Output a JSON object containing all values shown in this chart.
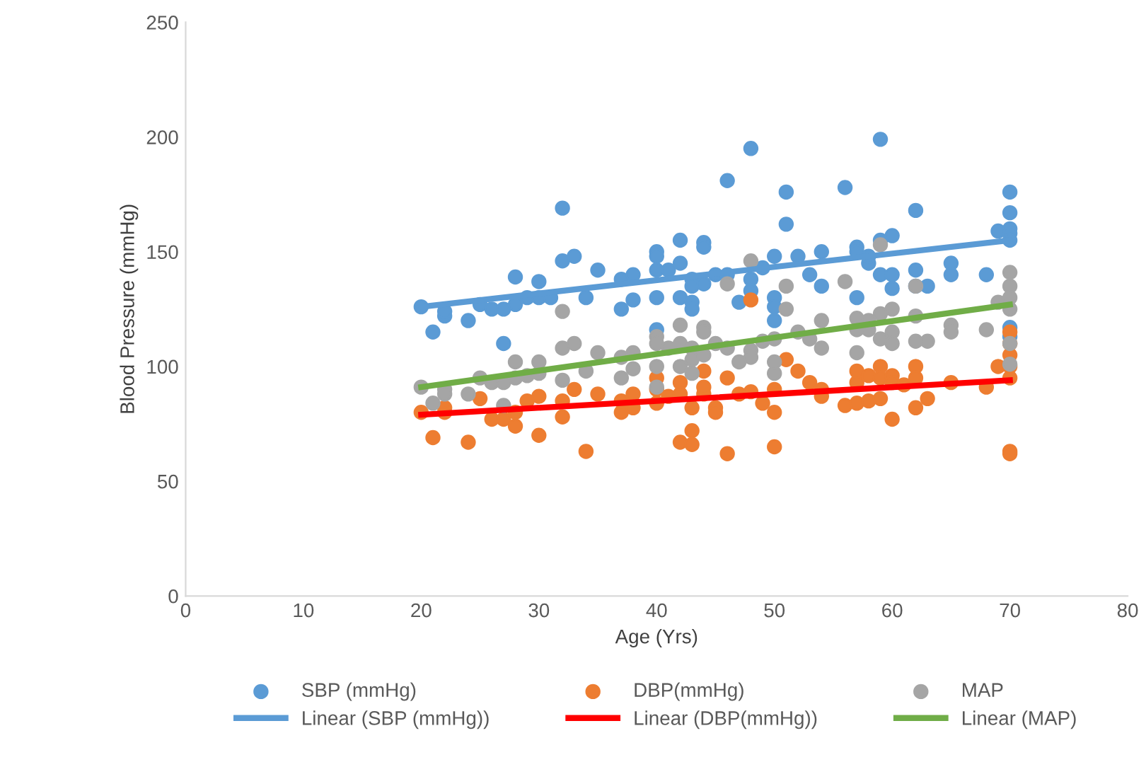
{
  "chart_data": {
    "type": "scatter",
    "xlabel": "Age (Yrs)",
    "ylabel": "Blood Pressure (mmHg)",
    "xlim": [
      0,
      80
    ],
    "xticks": [
      0,
      10,
      20,
      30,
      40,
      50,
      60,
      70,
      80
    ],
    "ylim": [
      0,
      250
    ],
    "yticks": [
      0,
      50,
      100,
      150,
      200,
      250
    ],
    "grid": false,
    "legend": "bottom",
    "series": [
      {
        "name": "SBP (mmHg)",
        "marker": "circle",
        "color": "#5b9bd5",
        "x": [
          20,
          21,
          22,
          22,
          24,
          25,
          26,
          27,
          27,
          28,
          28,
          29,
          30,
          30,
          31,
          32,
          32,
          33,
          34,
          35,
          37,
          37,
          38,
          38,
          40,
          40,
          40,
          40,
          40,
          41,
          42,
          42,
          42,
          43,
          43,
          43,
          43,
          44,
          44,
          44,
          45,
          46,
          46,
          47,
          48,
          48,
          48,
          49,
          50,
          50,
          50,
          50,
          51,
          51,
          52,
          53,
          54,
          54,
          56,
          57,
          57,
          57,
          58,
          58,
          59,
          59,
          59,
          60,
          60,
          60,
          62,
          62,
          62,
          63,
          65,
          65,
          68,
          69,
          70,
          70,
          70,
          70,
          70,
          70,
          70
        ],
        "values": [
          126,
          115,
          122,
          124,
          120,
          127,
          125,
          110,
          125,
          127,
          139,
          130,
          137,
          130,
          130,
          169,
          146,
          148,
          130,
          142,
          125,
          138,
          140,
          129,
          150,
          148,
          142,
          130,
          116,
          142,
          155,
          145,
          130,
          138,
          135,
          128,
          125,
          154,
          152,
          136,
          140,
          181,
          140,
          128,
          195,
          138,
          133,
          143,
          148,
          130,
          126,
          120,
          176,
          162,
          148,
          140,
          150,
          135,
          178,
          152,
          150,
          130,
          145,
          148,
          199,
          155,
          140,
          157,
          140,
          134,
          168,
          142,
          135,
          135,
          145,
          140,
          140,
          159,
          176,
          167,
          160,
          158,
          155,
          117,
          113
        ]
      },
      {
        "name": "DBP(mmHg)",
        "marker": "circle",
        "color": "#ed7d31",
        "x": [
          20,
          21,
          22,
          22,
          24,
          25,
          26,
          27,
          28,
          28,
          29,
          30,
          30,
          32,
          32,
          33,
          34,
          35,
          37,
          37,
          38,
          38,
          40,
          40,
          40,
          41,
          42,
          42,
          42,
          43,
          43,
          43,
          44,
          44,
          44,
          45,
          45,
          46,
          46,
          47,
          48,
          48,
          49,
          50,
          50,
          50,
          51,
          52,
          53,
          54,
          54,
          56,
          57,
          57,
          57,
          58,
          58,
          59,
          59,
          59,
          60,
          60,
          60,
          61,
          62,
          62,
          62,
          63,
          65,
          68,
          69,
          70,
          70,
          70,
          70,
          70,
          70,
          70
        ],
        "values": [
          80,
          69,
          82,
          80,
          67,
          86,
          77,
          77,
          74,
          80,
          85,
          70,
          87,
          78,
          85,
          90,
          63,
          88,
          80,
          85,
          82,
          88,
          95,
          90,
          84,
          87,
          93,
          88,
          67,
          72,
          66,
          82,
          98,
          88,
          91,
          82,
          80,
          95,
          62,
          88,
          129,
          89,
          84,
          90,
          80,
          65,
          103,
          98,
          93,
          90,
          87,
          83,
          93,
          98,
          84,
          96,
          85,
          100,
          95,
          86,
          96,
          93,
          77,
          92,
          100,
          95,
          82,
          86,
          93,
          91,
          100,
          115,
          110,
          105,
          100,
          95,
          63,
          62
        ]
      },
      {
        "name": "MAP",
        "marker": "circle",
        "color": "#a5a5a5",
        "x": [
          20,
          21,
          22,
          22,
          24,
          25,
          26,
          27,
          27,
          28,
          28,
          29,
          30,
          30,
          32,
          32,
          32,
          33,
          34,
          35,
          37,
          37,
          38,
          38,
          40,
          40,
          40,
          40,
          41,
          42,
          42,
          42,
          43,
          43,
          43,
          44,
          44,
          44,
          45,
          46,
          46,
          47,
          48,
          48,
          48,
          49,
          50,
          50,
          50,
          51,
          51,
          52,
          53,
          54,
          54,
          56,
          57,
          57,
          57,
          58,
          58,
          59,
          59,
          59,
          60,
          60,
          60,
          62,
          62,
          62,
          63,
          65,
          65,
          68,
          69,
          70,
          70,
          70,
          70,
          70,
          70
        ],
        "values": [
          91,
          84,
          90,
          88,
          88,
          95,
          93,
          83,
          93,
          95,
          102,
          96,
          102,
          97,
          124,
          108,
          94,
          110,
          98,
          106,
          104,
          95,
          99,
          106,
          113,
          110,
          100,
          91,
          108,
          118,
          110,
          100,
          108,
          103,
          97,
          117,
          115,
          105,
          110,
          136,
          108,
          102,
          146,
          107,
          104,
          111,
          112,
          97,
          102,
          135,
          125,
          115,
          112,
          120,
          108,
          137,
          121,
          116,
          106,
          116,
          120,
          153,
          123,
          112,
          125,
          115,
          110,
          135,
          122,
          111,
          111,
          118,
          115,
          116,
          128,
          141,
          135,
          130,
          125,
          110,
          101
        ]
      },
      {
        "name": "Linear (SBP (mmHg))",
        "type": "line",
        "marker": "none",
        "color": "#5b9bd5",
        "x": [
          20,
          70
        ],
        "values": [
          126,
          155
        ]
      },
      {
        "name": "Linear (DBP(mmHg))",
        "type": "line",
        "marker": "none",
        "color": "#ff0000",
        "x": [
          20,
          70
        ],
        "values": [
          79,
          94
        ]
      },
      {
        "name": "Linear (MAP)",
        "type": "line",
        "marker": "none",
        "color": "#70ad47",
        "x": [
          20,
          70
        ],
        "values": [
          91,
          127
        ]
      }
    ]
  }
}
